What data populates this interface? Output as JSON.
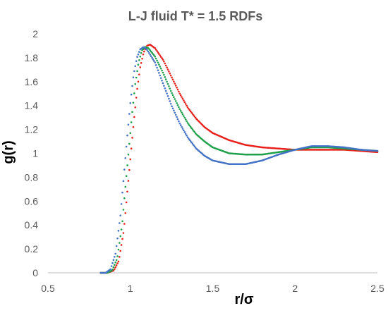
{
  "chart_data": {
    "type": "scatter",
    "title": "L-J fluid T* = 1.5 RDFs",
    "xlabel": "r/σ",
    "ylabel": "g(r)",
    "xlim": [
      0.5,
      2.5
    ],
    "ylim": [
      0,
      2
    ],
    "xticks": [
      "0.5",
      "1",
      "1.5",
      "2",
      "2.5"
    ],
    "yticks": [
      "0",
      "0.2",
      "0.4",
      "0.6",
      "0.8",
      "1",
      "1.2",
      "1.4",
      "1.6",
      "1.8",
      "2"
    ],
    "grid": false,
    "legend": "none",
    "series": [
      {
        "color": "#e8211b",
        "points": [
          [
            0.82,
            0.0
          ],
          [
            0.86,
            0.0
          ],
          [
            0.9,
            0.02
          ],
          [
            0.93,
            0.1
          ],
          [
            0.96,
            0.35
          ],
          [
            0.98,
            0.65
          ],
          [
            1.0,
            0.95
          ],
          [
            1.02,
            1.25
          ],
          [
            1.04,
            1.52
          ],
          [
            1.06,
            1.72
          ],
          [
            1.08,
            1.84
          ],
          [
            1.1,
            1.9
          ],
          [
            1.12,
            1.91
          ],
          [
            1.15,
            1.88
          ],
          [
            1.2,
            1.78
          ],
          [
            1.25,
            1.64
          ],
          [
            1.3,
            1.5
          ],
          [
            1.35,
            1.38
          ],
          [
            1.4,
            1.29
          ],
          [
            1.45,
            1.22
          ],
          [
            1.5,
            1.17
          ],
          [
            1.6,
            1.11
          ],
          [
            1.7,
            1.07
          ],
          [
            1.8,
            1.05
          ],
          [
            1.9,
            1.04
          ],
          [
            2.0,
            1.03
          ],
          [
            2.1,
            1.03
          ],
          [
            2.2,
            1.03
          ],
          [
            2.3,
            1.03
          ],
          [
            2.4,
            1.02
          ],
          [
            2.5,
            1.01
          ]
        ]
      },
      {
        "color": "#1ea04a",
        "points": [
          [
            0.82,
            0.0
          ],
          [
            0.86,
            0.0
          ],
          [
            0.89,
            0.02
          ],
          [
            0.92,
            0.12
          ],
          [
            0.95,
            0.4
          ],
          [
            0.97,
            0.72
          ],
          [
            0.99,
            1.02
          ],
          [
            1.01,
            1.32
          ],
          [
            1.03,
            1.58
          ],
          [
            1.05,
            1.76
          ],
          [
            1.07,
            1.86
          ],
          [
            1.09,
            1.89
          ],
          [
            1.11,
            1.88
          ],
          [
            1.15,
            1.81
          ],
          [
            1.2,
            1.67
          ],
          [
            1.25,
            1.51
          ],
          [
            1.3,
            1.37
          ],
          [
            1.35,
            1.25
          ],
          [
            1.4,
            1.16
          ],
          [
            1.45,
            1.1
          ],
          [
            1.5,
            1.05
          ],
          [
            1.6,
            1.0
          ],
          [
            1.7,
            0.99
          ],
          [
            1.8,
            0.99
          ],
          [
            1.9,
            1.01
          ],
          [
            2.0,
            1.03
          ],
          [
            2.1,
            1.05
          ],
          [
            2.2,
            1.05
          ],
          [
            2.3,
            1.04
          ],
          [
            2.4,
            1.03
          ],
          [
            2.5,
            1.02
          ]
        ]
      },
      {
        "color": "#4472c4",
        "points": [
          [
            0.82,
            0.0
          ],
          [
            0.85,
            0.0
          ],
          [
            0.88,
            0.03
          ],
          [
            0.91,
            0.16
          ],
          [
            0.94,
            0.48
          ],
          [
            0.96,
            0.8
          ],
          [
            0.98,
            1.12
          ],
          [
            1.0,
            1.42
          ],
          [
            1.02,
            1.66
          ],
          [
            1.04,
            1.8
          ],
          [
            1.06,
            1.87
          ],
          [
            1.08,
            1.89
          ],
          [
            1.1,
            1.87
          ],
          [
            1.15,
            1.76
          ],
          [
            1.2,
            1.58
          ],
          [
            1.25,
            1.4
          ],
          [
            1.3,
            1.25
          ],
          [
            1.35,
            1.13
          ],
          [
            1.4,
            1.04
          ],
          [
            1.45,
            0.98
          ],
          [
            1.5,
            0.94
          ],
          [
            1.6,
            0.91
          ],
          [
            1.7,
            0.91
          ],
          [
            1.8,
            0.94
          ],
          [
            1.9,
            0.99
          ],
          [
            2.0,
            1.03
          ],
          [
            2.1,
            1.06
          ],
          [
            2.2,
            1.06
          ],
          [
            2.3,
            1.05
          ],
          [
            2.4,
            1.03
          ],
          [
            2.5,
            1.02
          ]
        ]
      }
    ]
  }
}
